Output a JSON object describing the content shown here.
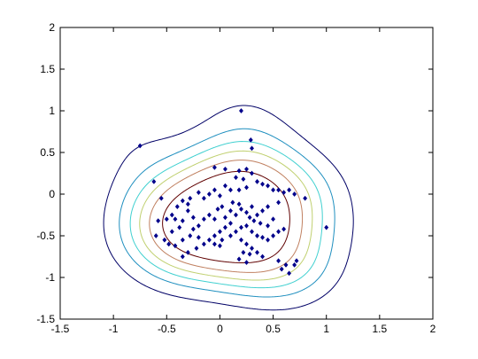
{
  "chart_data": {
    "type": "scatter",
    "title": "",
    "xlabel": "",
    "ylabel": "",
    "xlim": [
      -1.5,
      2
    ],
    "ylim": [
      -1.5,
      2
    ],
    "grid": false,
    "x_ticks": [
      -1.5,
      -1,
      -0.5,
      0,
      0.5,
      1,
      1.5,
      2
    ],
    "y_ticks": [
      -1.5,
      -1,
      -0.5,
      0,
      0.5,
      1,
      1.5,
      2
    ],
    "x_tick_labels": [
      "-1.5",
      "-1",
      "-0.5",
      "0",
      "0.5",
      "1",
      "1.5",
      "2"
    ],
    "y_tick_labels": [
      "-1.5",
      "-1",
      "-0.5",
      "0",
      "0.5",
      "1",
      "1.5",
      "2"
    ],
    "marker_color": "#00008b",
    "points": [
      [
        0.2,
        1.0
      ],
      [
        -0.75,
        0.58
      ],
      [
        -0.62,
        0.15
      ],
      [
        -0.55,
        -0.05
      ],
      [
        0.29,
        0.65
      ],
      [
        0.3,
        0.55
      ],
      [
        -0.05,
        0.32
      ],
      [
        0.05,
        0.3
      ],
      [
        0.18,
        0.28
      ],
      [
        0.25,
        0.3
      ],
      [
        0.3,
        0.25
      ],
      [
        0.15,
        0.2
      ],
      [
        0.22,
        0.18
      ],
      [
        0.35,
        0.15
      ],
      [
        0.4,
        0.12
      ],
      [
        0.45,
        0.1
      ],
      [
        0.5,
        0.05
      ],
      [
        0.55,
        0.05
      ],
      [
        0.6,
        0.02
      ],
      [
        0.65,
        0.05
      ],
      [
        0.7,
        0.0
      ],
      [
        0.8,
        -0.05
      ],
      [
        0.05,
        0.1
      ],
      [
        0.1,
        0.05
      ],
      [
        0.18,
        0.05
      ],
      [
        0.25,
        0.08
      ],
      [
        -0.05,
        0.05
      ],
      [
        0.0,
        -0.02
      ],
      [
        -0.1,
        0.0
      ],
      [
        -0.15,
        -0.05
      ],
      [
        -0.2,
        0.02
      ],
      [
        -0.28,
        -0.05
      ],
      [
        -0.35,
        -0.08
      ],
      [
        -0.4,
        -0.15
      ],
      [
        -0.3,
        -0.2
      ],
      [
        -0.45,
        -0.25
      ],
      [
        -0.5,
        -0.3
      ],
      [
        -0.58,
        -0.32
      ],
      [
        -0.42,
        -0.3
      ],
      [
        -0.35,
        -0.32
      ],
      [
        -0.38,
        -0.4
      ],
      [
        -0.45,
        -0.45
      ],
      [
        -0.6,
        -0.5
      ],
      [
        -0.52,
        -0.55
      ],
      [
        -0.48,
        -0.6
      ],
      [
        -0.42,
        -0.62
      ],
      [
        -0.35,
        -0.55
      ],
      [
        -0.28,
        -0.5
      ],
      [
        -0.25,
        -0.42
      ],
      [
        -0.2,
        -0.38
      ],
      [
        -0.15,
        -0.3
      ],
      [
        -0.1,
        -0.25
      ],
      [
        -0.05,
        -0.3
      ],
      [
        0.05,
        -0.28
      ],
      [
        0.1,
        -0.2
      ],
      [
        0.15,
        -0.25
      ],
      [
        0.2,
        -0.18
      ],
      [
        0.25,
        -0.22
      ],
      [
        0.28,
        -0.28
      ],
      [
        0.32,
        -0.32
      ],
      [
        0.38,
        -0.35
      ],
      [
        0.45,
        -0.38
      ],
      [
        0.5,
        -0.3
      ],
      [
        0.35,
        -0.25
      ],
      [
        0.3,
        -0.15
      ],
      [
        0.4,
        -0.2
      ],
      [
        0.45,
        -0.15
      ],
      [
        0.55,
        -0.1
      ],
      [
        0.1,
        -0.35
      ],
      [
        0.05,
        -0.4
      ],
      [
        0.0,
        -0.45
      ],
      [
        -0.05,
        -0.5
      ],
      [
        0.02,
        -0.55
      ],
      [
        0.1,
        -0.5
      ],
      [
        0.15,
        -0.45
      ],
      [
        0.2,
        -0.4
      ],
      [
        0.25,
        -0.38
      ],
      [
        0.3,
        -0.45
      ],
      [
        0.35,
        -0.5
      ],
      [
        0.4,
        -0.52
      ],
      [
        0.45,
        -0.55
      ],
      [
        0.5,
        -0.5
      ],
      [
        0.55,
        -0.45
      ],
      [
        0.6,
        -0.42
      ],
      [
        0.2,
        -0.55
      ],
      [
        0.25,
        -0.6
      ],
      [
        0.3,
        -0.65
      ],
      [
        0.22,
        -0.7
      ],
      [
        0.28,
        -0.72
      ],
      [
        0.35,
        -0.7
      ],
      [
        0.4,
        -0.75
      ],
      [
        0.18,
        -0.78
      ],
      [
        0.25,
        -0.82
      ],
      [
        0.55,
        -0.8
      ],
      [
        0.62,
        -0.85
      ],
      [
        0.58,
        -0.9
      ],
      [
        0.65,
        -0.95
      ],
      [
        0.7,
        -0.85
      ],
      [
        0.72,
        -0.8
      ],
      [
        1.0,
        -0.4
      ],
      [
        -0.3,
        -0.7
      ],
      [
        -0.35,
        -0.75
      ],
      [
        -0.22,
        -0.65
      ],
      [
        -0.15,
        -0.6
      ],
      [
        -0.1,
        -0.55
      ],
      [
        -0.05,
        -0.6
      ],
      [
        0.0,
        -0.62
      ],
      [
        -0.2,
        -0.52
      ],
      [
        -0.25,
        -0.28
      ],
      [
        -0.3,
        -0.12
      ],
      [
        0.12,
        -0.1
      ],
      [
        0.18,
        -0.12
      ],
      [
        0.02,
        -0.15
      ],
      [
        -0.02,
        -0.18
      ]
    ]
  },
  "contour_colors": [
    "#000066",
    "#1f8fbf",
    "#40d0d0",
    "#c0d070",
    "#c08060",
    "#600000"
  ]
}
